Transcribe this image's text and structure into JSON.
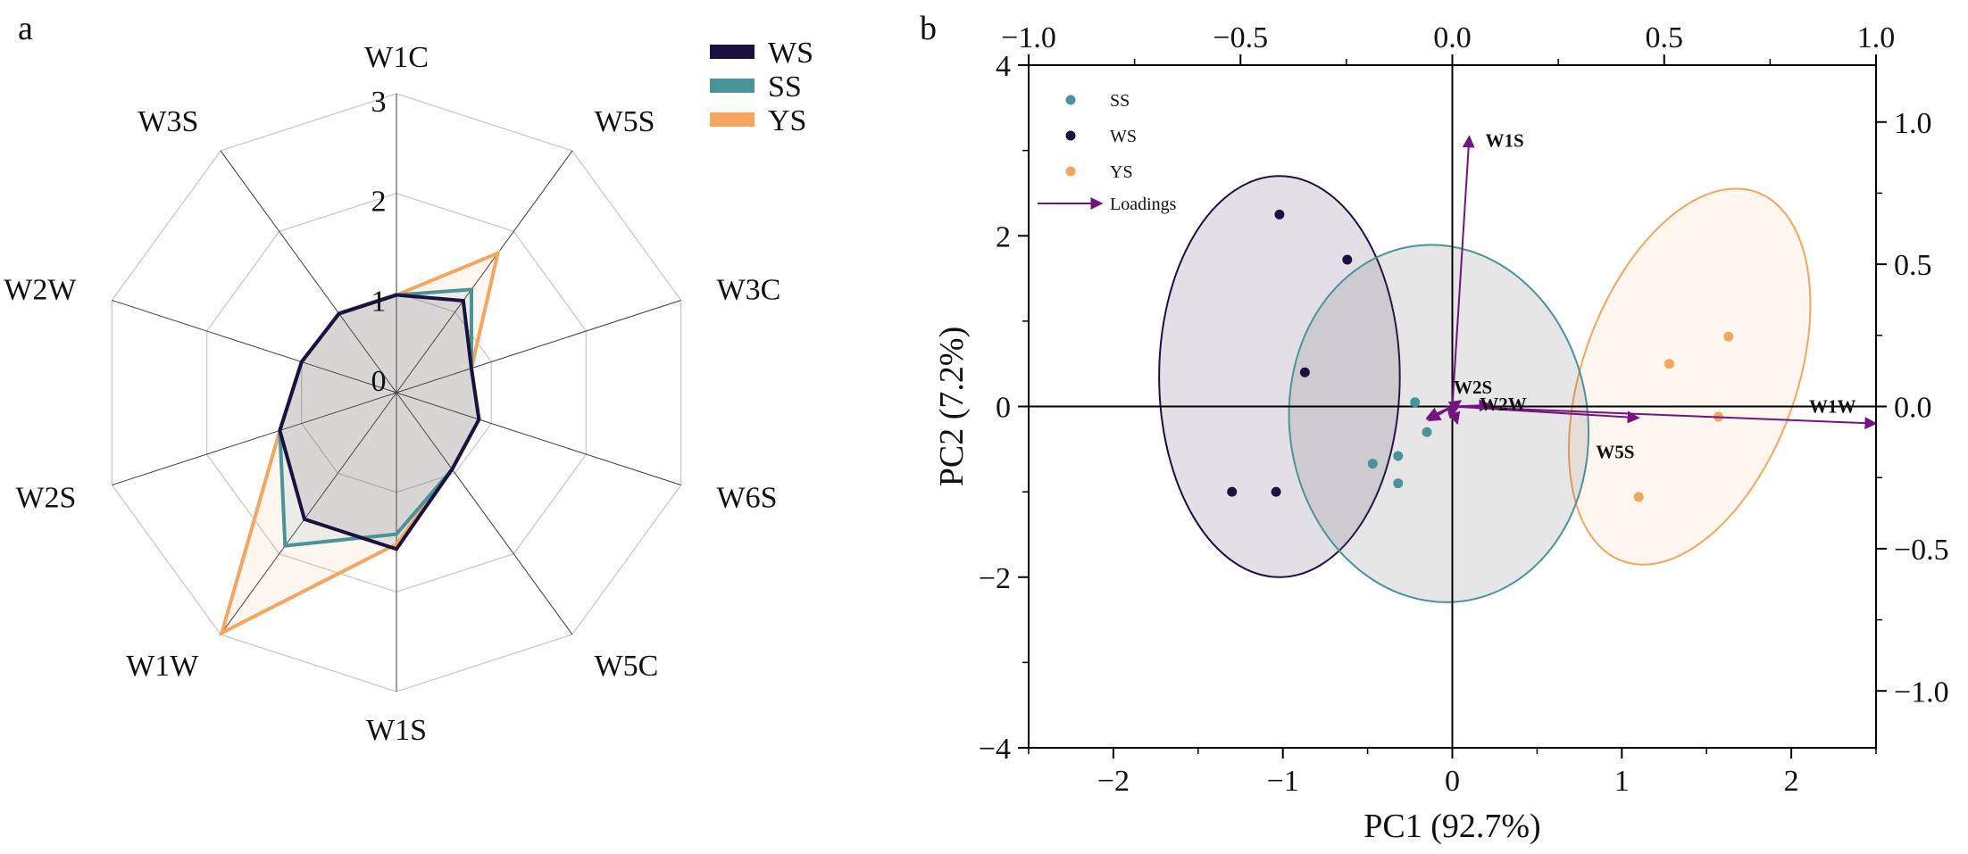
{
  "panel_labels": {
    "a": "a",
    "b": "b"
  },
  "colors": {
    "WS": "#1c1041",
    "SS": "#4a9499",
    "YS": "#f4a55e",
    "loading": "#74147f",
    "grid": "#c9c9c9",
    "spoke": "#3c3c3c"
  },
  "chart_data": [
    {
      "type": "radar",
      "panel": "a",
      "axes": [
        "W1C",
        "W5S",
        "W3C",
        "W6S",
        "W5C",
        "W1S",
        "W1W",
        "W2S",
        "W2W",
        "W3S"
      ],
      "radial_range": [
        0,
        3
      ],
      "radial_ticks": [
        "0",
        "1",
        "2",
        "3"
      ],
      "legend": {
        "placement": "top-right",
        "entries": [
          "WS",
          "SS",
          "YS"
        ]
      },
      "series": [
        {
          "name": "WS",
          "values": [
            0.98,
            1.14,
            0.79,
            0.87,
            0.95,
            1.57,
            1.57,
            1.23,
            1.0,
            0.98
          ]
        },
        {
          "name": "SS",
          "values": [
            0.98,
            1.28,
            0.79,
            0.87,
            0.95,
            1.42,
            1.9,
            1.23,
            1.0,
            0.98
          ]
        },
        {
          "name": "YS",
          "values": [
            0.98,
            1.73,
            0.79,
            0.87,
            0.95,
            1.52,
            2.98,
            1.23,
            1.0,
            0.98
          ]
        }
      ]
    },
    {
      "type": "biplot",
      "panel": "b",
      "xlabel": "PC1 (92.7%)",
      "ylabel": "PC2 (7.2%)",
      "xlim": [
        -2.5,
        2.5
      ],
      "ylim": [
        -4,
        4
      ],
      "x_ticks": [
        "−2",
        "−1",
        "0",
        "1",
        "2"
      ],
      "y_ticks": [
        "−4",
        "−2",
        "0",
        "2",
        "4"
      ],
      "top_axis": {
        "lim": [
          -1.0,
          1.0
        ],
        "ticks": [
          "−1.0",
          "−0.5",
          "0.0",
          "0.5",
          "1.0"
        ]
      },
      "right_axis": {
        "lim": [
          -1.2,
          1.2
        ],
        "ticks": [
          "1.0",
          "0.5",
          "0.0",
          "−0.5",
          "−1.0"
        ]
      },
      "legend": {
        "placement": "top-left",
        "entries": [
          "SS",
          "WS",
          "YS"
        ],
        "loadings_label": "Loadings"
      },
      "groups": [
        {
          "name": "SS",
          "points": [
            [
              -0.22,
              0.05
            ],
            [
              -0.15,
              -0.3
            ],
            [
              -0.32,
              -0.58
            ],
            [
              -0.32,
              -0.9
            ],
            [
              -0.47,
              -0.67
            ]
          ],
          "ellipse": {
            "cx": -0.08,
            "cy": -0.2,
            "rx": 0.88,
            "ry": 2.1,
            "angle_deg": 8
          }
        },
        {
          "name": "WS",
          "points": [
            [
              -1.02,
              2.25
            ],
            [
              -0.62,
              1.72
            ],
            [
              -0.87,
              0.4
            ],
            [
              -1.04,
              -1.0
            ],
            [
              -1.3,
              -1.0
            ]
          ],
          "ellipse": {
            "cx": -1.02,
            "cy": 0.35,
            "rx": 0.71,
            "ry": 2.35,
            "angle_deg": 0
          }
        },
        {
          "name": "YS",
          "points": [
            [
              1.63,
              0.82
            ],
            [
              1.28,
              0.5
            ],
            [
              1.57,
              -0.12
            ],
            [
              1.1,
              -1.06
            ]
          ],
          "ellipse": {
            "cx": 1.4,
            "cy": 0.35,
            "rx": 0.63,
            "ry": 2.3,
            "angle_deg": -20
          }
        }
      ],
      "loadings": [
        {
          "name": "W1S",
          "x": 0.04,
          "y": 0.95
        },
        {
          "name": "W1W",
          "x": 1.0,
          "y": -0.06
        },
        {
          "name": "W5S",
          "x": 0.44,
          "y": -0.04
        },
        {
          "name": "W2S",
          "x": 0.02,
          "y": 0.02
        },
        {
          "name": "W2W",
          "x": 0.09,
          "y": 0.005
        },
        {
          "name": "W1C",
          "x": -0.06,
          "y": -0.04
        },
        {
          "name": "W3C",
          "x": -0.055,
          "y": -0.05
        },
        {
          "name": "W5C",
          "x": -0.06,
          "y": -0.045
        },
        {
          "name": "W6S",
          "x": 0.012,
          "y": -0.06
        },
        {
          "name": "W3S",
          "x": -0.005,
          "y": -0.04
        }
      ],
      "loading_labels_visible": [
        "W1S",
        "W1W",
        "W5S",
        "W2S",
        "W2W"
      ]
    }
  ]
}
